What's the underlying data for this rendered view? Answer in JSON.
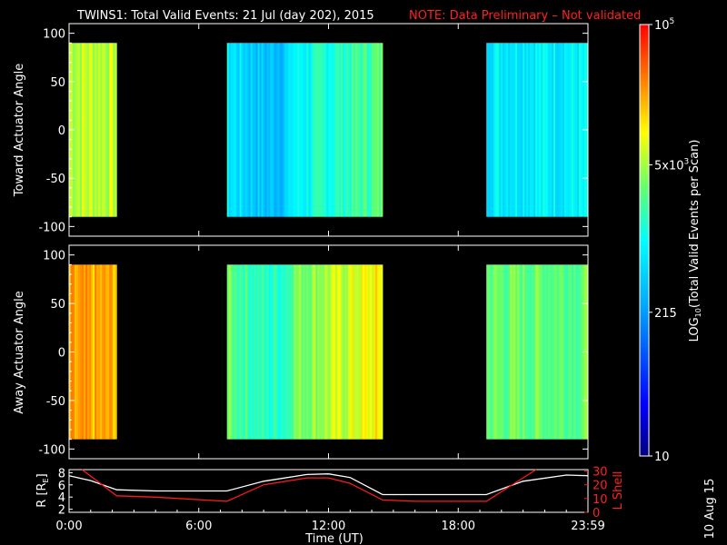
{
  "header": {
    "title": "TWINS1: Total Valid Events: 21 Jul (day 202), 2015",
    "note": "NOTE: Data Preliminary – Not validated"
  },
  "footer": {
    "date_stamp": "10 Aug 15"
  },
  "colors": {
    "note": "#ff2020",
    "lshell": "#ff1a1a",
    "r_line": "#ffffff",
    "fill_gap": "#000000"
  },
  "chart_data": [
    {
      "type": "heatmap",
      "name": "toward",
      "ylabel": "Toward Actuator Angle",
      "ylim": [
        -110,
        110
      ],
      "y_data_range": [
        -90,
        90
      ],
      "yticks": [
        100,
        50,
        0,
        -50,
        -100
      ],
      "xlim_hours": [
        0,
        24
      ],
      "segments": [
        {
          "start_hour": 0.0,
          "end_hour": 2.2,
          "level": 0.7
        },
        {
          "start_hour": 7.3,
          "end_hour": 14.5,
          "level": 0.45
        },
        {
          "start_hour": 19.3,
          "end_hour": 24.0,
          "level": 0.48
        }
      ]
    },
    {
      "type": "heatmap",
      "name": "away",
      "ylabel": "Away Actuator Angle",
      "ylim": [
        -110,
        110
      ],
      "y_data_range": [
        -90,
        90
      ],
      "yticks": [
        100,
        50,
        0,
        -50,
        -100
      ],
      "xlim_hours": [
        0,
        24
      ],
      "segments": [
        {
          "start_hour": 0.0,
          "end_hour": 2.2,
          "level": 0.82
        },
        {
          "start_hour": 7.3,
          "end_hour": 14.5,
          "level": 0.6
        },
        {
          "start_hour": 19.3,
          "end_hour": 24.0,
          "level": 0.62
        }
      ]
    },
    {
      "type": "colorbar",
      "label_log": "LOG",
      "label_sub": "10",
      "label_rest": "(Total Valid Events per Scan)",
      "scale": "log",
      "range": [
        10,
        100000
      ],
      "ticks": [
        {
          "value": 100000,
          "base": "10",
          "exp": "5"
        },
        {
          "value": 5000,
          "base": "5x10",
          "exp": "3"
        },
        {
          "value": 215,
          "base": "215",
          "exp": ""
        },
        {
          "value": 10,
          "base": "10",
          "exp": ""
        }
      ]
    },
    {
      "type": "line",
      "name": "orbit",
      "ylabel_left_main": "R [R",
      "ylabel_left_sub": "E",
      "ylabel_left_close": "]",
      "ylabel_right": "L Shell",
      "xlabel": "Time (UT)",
      "xticks": [
        {
          "hour": 0,
          "label": "0:00"
        },
        {
          "hour": 6,
          "label": "6:00"
        },
        {
          "hour": 12,
          "label": "12:00"
        },
        {
          "hour": 18,
          "label": "18:00"
        },
        {
          "hour": 24,
          "label": "23:59"
        }
      ],
      "yleft_ticks": [
        8,
        6,
        4,
        2
      ],
      "yleft_range": [
        1.5,
        8.5
      ],
      "yright_ticks": [
        30,
        20,
        10,
        0
      ],
      "yright_range": [
        0,
        31
      ],
      "series": [
        {
          "name": "R",
          "axis": "left",
          "x": [
            0,
            1,
            2.2,
            4,
            7.3,
            9,
            11,
            12,
            13,
            14.5,
            16,
            19.3,
            21,
            23,
            24
          ],
          "y": [
            7.5,
            6.7,
            5.2,
            5.0,
            5.0,
            6.6,
            7.7,
            7.8,
            7.2,
            4.4,
            4.4,
            4.4,
            6.6,
            7.6,
            7.5
          ]
        },
        {
          "name": "L Shell",
          "axis": "right",
          "x": [
            0.6,
            2.2,
            4,
            7.3,
            9,
            11,
            12,
            13,
            14.5,
            16,
            19.3,
            21.6
          ],
          "y": [
            31,
            12,
            11,
            8,
            20,
            25,
            25,
            21,
            9,
            8,
            8,
            31
          ]
        }
      ]
    }
  ]
}
